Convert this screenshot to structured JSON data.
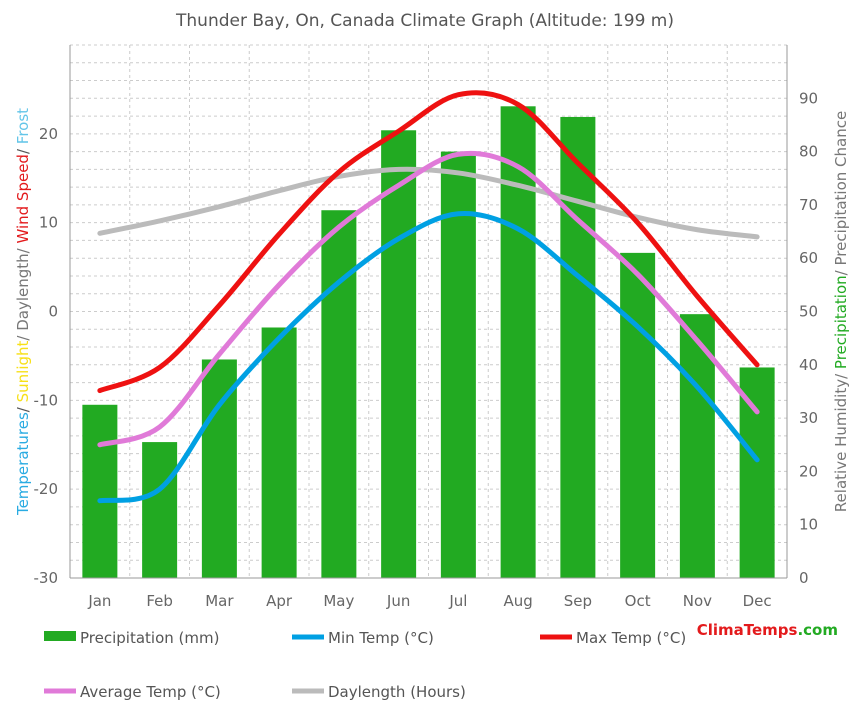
{
  "title": "Thunder Bay, On, Canada Climate Graph (Altitude: 199 m)",
  "left_axis_label": [
    {
      "text": "Temperatures",
      "color": "#29abe2"
    },
    {
      "text": "/ ",
      "color": "#555555"
    },
    {
      "text": "Sunlight",
      "color": "#f7e017"
    },
    {
      "text": "/ Daylength/ ",
      "color": "#777777"
    },
    {
      "text": "Wind Speed",
      "color": "#e31a1c"
    },
    {
      "text": "/ ",
      "color": "#555555"
    },
    {
      "text": "Frost",
      "color": "#63c5e8"
    }
  ],
  "right_axis_label": [
    {
      "text": "Relative Humidity/ ",
      "color": "#777777"
    },
    {
      "text": "Precipitation",
      "color": "#22aa22"
    },
    {
      "text": "/ Precipitation Chance",
      "color": "#777777"
    }
  ],
  "brand": {
    "part1": "Clima",
    "part2": "Temps",
    "part3": ".com",
    "color1": "#e31a1c",
    "color2": "#e31a1c",
    "color3": "#22aa22"
  },
  "colors": {
    "precip": "#22aa22",
    "min": "#00a0e3",
    "max": "#ee1111",
    "avg": "#e07ad8",
    "day": "#bbbbbb"
  },
  "chart_data": {
    "type": "bar+line",
    "categories": [
      "Jan",
      "Feb",
      "Mar",
      "Apr",
      "May",
      "Jun",
      "Jul",
      "Aug",
      "Sep",
      "Oct",
      "Nov",
      "Dec"
    ],
    "left_axis": {
      "range": [
        -30,
        30
      ],
      "ticks": [
        "-30",
        "-20",
        "-10",
        "0",
        "10",
        "20"
      ],
      "tick_values": [
        -30,
        -20,
        -10,
        0,
        10,
        20
      ]
    },
    "right_axis": {
      "range": [
        0,
        100
      ],
      "ticks": [
        "0",
        "10",
        "20",
        "30",
        "40",
        "50",
        "60",
        "70",
        "80",
        "90"
      ],
      "tick_values": [
        0,
        10,
        20,
        30,
        40,
        50,
        60,
        70,
        80,
        90
      ]
    },
    "series": [
      {
        "name": "Precipitation (mm)",
        "type": "bar",
        "axis": "right",
        "values": [
          32.5,
          25.5,
          41,
          47,
          69,
          84,
          80,
          88.5,
          86.5,
          61,
          49.5,
          39.5
        ]
      },
      {
        "name": "Min Temp (°C)",
        "type": "line",
        "axis": "left",
        "values": [
          -21.3,
          -20,
          -10.5,
          -3,
          3.3,
          8.2,
          11,
          9.3,
          4,
          -1.7,
          -8.5,
          -16.7
        ]
      },
      {
        "name": "Max Temp (°C)",
        "type": "line",
        "axis": "left",
        "values": [
          -8.9,
          -6.3,
          0.7,
          8.7,
          15.7,
          20.3,
          24.4,
          23.3,
          16.7,
          10,
          1.7,
          -6
        ]
      },
      {
        "name": "Average Temp (°C)",
        "type": "line",
        "axis": "left",
        "values": [
          -15,
          -13,
          -4.8,
          3,
          9.5,
          14.2,
          17.7,
          16.3,
          10.3,
          4.2,
          -3.3,
          -11.3
        ]
      },
      {
        "name": "Daylength (Hours)",
        "type": "line",
        "axis": "left",
        "values": [
          8.8,
          10.2,
          11.8,
          13.6,
          15.2,
          16,
          15.6,
          14.2,
          12.4,
          10.6,
          9.2,
          8.4
        ]
      }
    ]
  },
  "legend": [
    {
      "label": "Precipitation (mm)",
      "kind": "box",
      "color": "#22aa22"
    },
    {
      "label": "Min Temp (°C)",
      "kind": "line",
      "color": "#00a0e3"
    },
    {
      "label": "Max Temp (°C)",
      "kind": "line",
      "color": "#ee1111"
    },
    {
      "label": "Average Temp (°C)",
      "kind": "line",
      "color": "#e07ad8"
    },
    {
      "label": "Daylength (Hours)",
      "kind": "line",
      "color": "#bbbbbb"
    }
  ]
}
